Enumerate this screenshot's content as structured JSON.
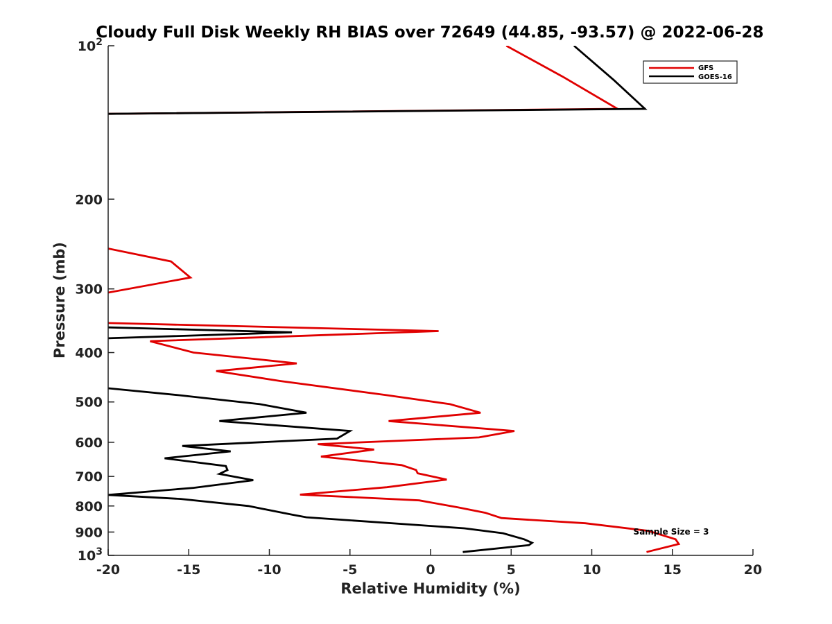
{
  "chart_data": {
    "type": "line",
    "title": "Cloudy Full Disk Weekly RH BIAS over 72649 (44.85, -93.57) @ 2022-06-28",
    "xlabel": "Relative Humidity (%)",
    "ylabel": "Pressure (mb)",
    "xlim": [
      -20,
      20
    ],
    "ylim": [
      100,
      1000
    ],
    "y_scale": "log",
    "y_reversed": true,
    "grid": false,
    "legend_position": "top-right",
    "annotation": "Sample Size = 3",
    "x_ticks": [
      -20,
      -15,
      -10,
      -5,
      0,
      5,
      10,
      15,
      20
    ],
    "x_tick_labels": [
      "-20",
      "-15",
      "-10",
      "-5",
      "0",
      "5",
      "10",
      "15",
      "20"
    ],
    "y_ticks": [
      100,
      200,
      300,
      400,
      500,
      600,
      700,
      800,
      900,
      1000
    ],
    "y_tick_labels": [
      {
        "base": "10",
        "exp": "2"
      },
      {
        "base": "200",
        "exp": ""
      },
      {
        "base": "300",
        "exp": ""
      },
      {
        "base": "400",
        "exp": ""
      },
      {
        "base": "500",
        "exp": ""
      },
      {
        "base": "600",
        "exp": ""
      },
      {
        "base": "700",
        "exp": ""
      },
      {
        "base": "800",
        "exp": ""
      },
      {
        "base": "900",
        "exp": ""
      },
      {
        "base": "10",
        "exp": "3"
      }
    ],
    "series": [
      {
        "name": "GFS",
        "color": "#e00000",
        "segments": [
          [
            [
              4.7,
              100
            ],
            [
              8.2,
              115
            ],
            [
              11.6,
              133
            ],
            [
              -20,
              136
            ]
          ],
          [
            [
              -20,
              250
            ],
            [
              -16.1,
              265
            ],
            [
              -14.9,
              285
            ],
            [
              -20,
              305
            ]
          ],
          [
            [
              -20,
              350
            ],
            [
              0.5,
              363
            ],
            [
              -17.4,
              380
            ],
            [
              -14.7,
              400
            ],
            [
              -8.3,
              420
            ],
            [
              -13.3,
              435
            ],
            [
              -9.3,
              455
            ],
            [
              -2.7,
              485
            ],
            [
              1.2,
              505
            ],
            [
              3.1,
              525
            ],
            [
              -2.6,
              545
            ],
            [
              5.2,
              570
            ],
            [
              3.0,
              587
            ],
            [
              -7.0,
              605
            ],
            [
              -3.5,
              620
            ],
            [
              -6.8,
              640
            ],
            [
              -1.8,
              665
            ],
            [
              -0.9,
              680
            ],
            [
              -0.8,
              690
            ],
            [
              1.0,
              710
            ],
            [
              -2.7,
              735
            ],
            [
              -8.1,
              760
            ],
            [
              -0.7,
              780
            ],
            [
              1.7,
              805
            ],
            [
              3.4,
              825
            ],
            [
              4.4,
              845
            ],
            [
              9.6,
              865
            ],
            [
              13.5,
              895
            ],
            [
              15.2,
              930
            ],
            [
              15.4,
              950
            ],
            [
              13.4,
              985
            ]
          ]
        ]
      },
      {
        "name": "GOES-16",
        "color": "#000000",
        "segments": [
          [
            [
              8.9,
              100
            ],
            [
              11.4,
              117
            ],
            [
              13.3,
              133
            ],
            [
              -20,
              136
            ]
          ],
          [
            [
              -20,
              357
            ],
            [
              -8.6,
              365
            ],
            [
              -20,
              375
            ]
          ],
          [
            [
              -20,
              470
            ],
            [
              -15.6,
              485
            ],
            [
              -10.6,
              505
            ],
            [
              -7.7,
              525
            ],
            [
              -13.1,
              545
            ],
            [
              -5.0,
              570
            ],
            [
              -5.8,
              590
            ],
            [
              -15.4,
              610
            ],
            [
              -12.4,
              625
            ],
            [
              -16.5,
              645
            ],
            [
              -12.7,
              668
            ],
            [
              -12.6,
              680
            ],
            [
              -13.1,
              692
            ],
            [
              -11.0,
              712
            ],
            [
              -14.7,
              737
            ],
            [
              -20,
              761
            ],
            [
              -15.5,
              775
            ],
            [
              -11.3,
              800
            ],
            [
              -8.6,
              832
            ],
            [
              -7.7,
              842
            ],
            [
              2.1,
              885
            ],
            [
              4.5,
              905
            ],
            [
              5.8,
              930
            ],
            [
              6.3,
              945
            ],
            [
              6.1,
              955
            ],
            [
              2.0,
              985
            ]
          ]
        ]
      }
    ]
  }
}
